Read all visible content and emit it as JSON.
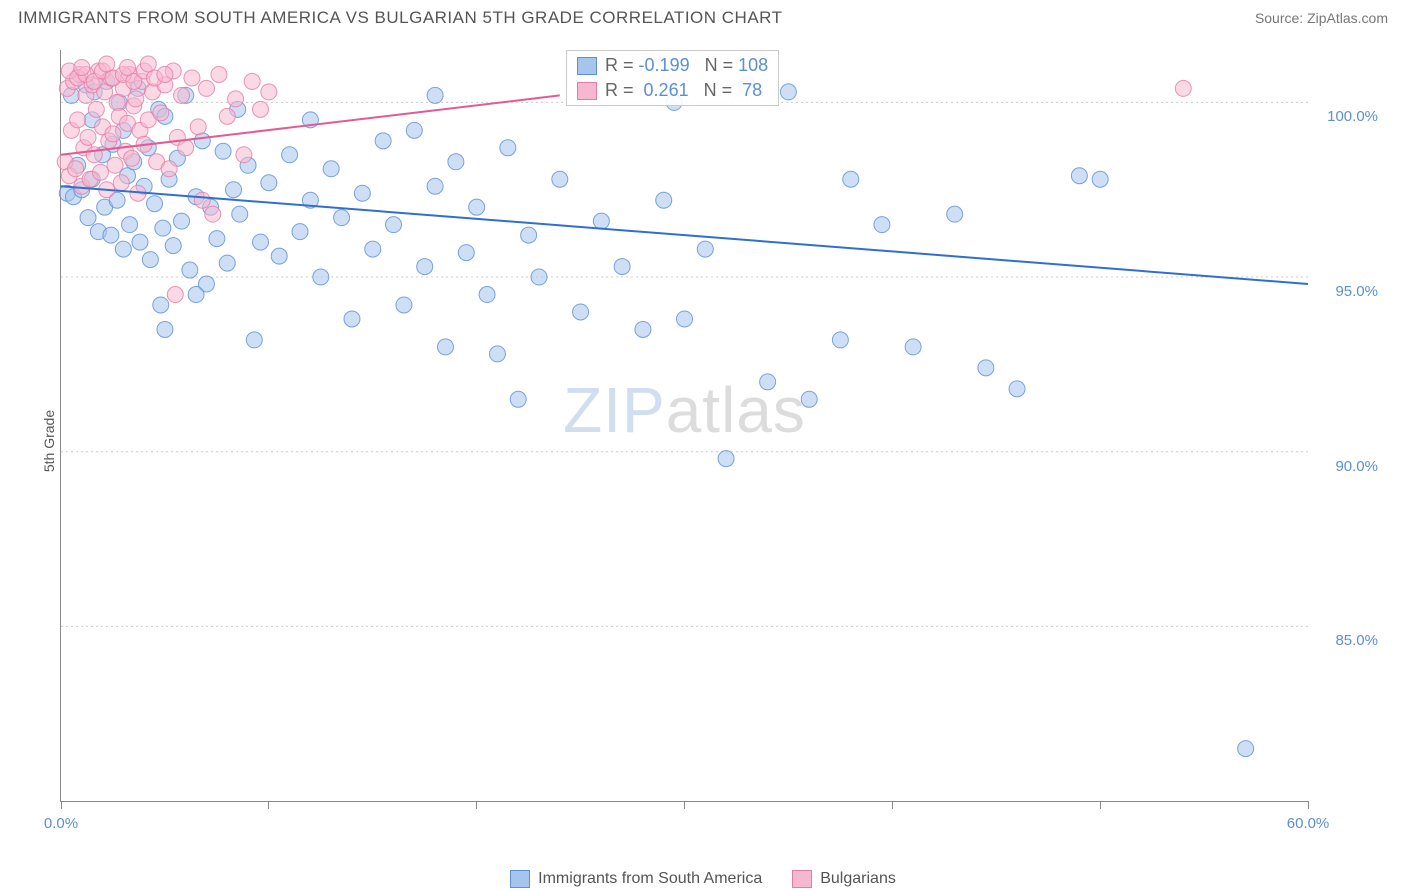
{
  "title": "IMMIGRANTS FROM SOUTH AMERICA VS BULGARIAN 5TH GRADE CORRELATION CHART",
  "source": "Source: ZipAtlas.com",
  "ylabel": "5th Grade",
  "watermark": {
    "part1": "ZIP",
    "part2": "atlas"
  },
  "chart": {
    "type": "scatter",
    "xlim": [
      0,
      60
    ],
    "ylim": [
      80,
      101.5
    ],
    "x_ticks": [
      0,
      10,
      20,
      30,
      40,
      50,
      60
    ],
    "x_tick_labels": {
      "0": "0.0%",
      "60": "60.0%"
    },
    "y_ticks": [
      85,
      90,
      95,
      100
    ],
    "y_tick_labels": {
      "85": "85.0%",
      "90": "90.0%",
      "95": "95.0%",
      "100": "100.0%"
    },
    "y_tick_color": "#5b8fd6",
    "x_tick_color": "#5b8fd6",
    "grid_color": "#cccccc",
    "background_color": "#ffffff",
    "marker_radius": 8,
    "marker_opacity": 0.55,
    "series": [
      {
        "name": "Immigrants from South America",
        "color_fill": "#a6c5ec",
        "color_stroke": "#5b8fd6",
        "r_value": "-0.199",
        "n_value": "108",
        "trend": {
          "x1": 0,
          "y1": 97.6,
          "x2": 60,
          "y2": 94.8,
          "color": "#2e6fd1",
          "width": 2
        },
        "points": [
          [
            0.3,
            97.4
          ],
          [
            0.5,
            100.2
          ],
          [
            0.6,
            97.3
          ],
          [
            0.8,
            98.2
          ],
          [
            1.0,
            97.5
          ],
          [
            1.2,
            100.5
          ],
          [
            1.3,
            96.7
          ],
          [
            1.5,
            97.8
          ],
          [
            1.6,
            100.3
          ],
          [
            1.8,
            96.3
          ],
          [
            2.0,
            98.5
          ],
          [
            2.1,
            97.0
          ],
          [
            2.2,
            100.6
          ],
          [
            2.4,
            96.2
          ],
          [
            2.5,
            98.8
          ],
          [
            2.7,
            97.2
          ],
          [
            2.8,
            100.0
          ],
          [
            3.0,
            95.8
          ],
          [
            3.2,
            97.9
          ],
          [
            3.3,
            96.5
          ],
          [
            3.5,
            98.3
          ],
          [
            3.7,
            100.4
          ],
          [
            3.8,
            96.0
          ],
          [
            4.0,
            97.6
          ],
          [
            4.2,
            98.7
          ],
          [
            4.3,
            95.5
          ],
          [
            4.5,
            97.1
          ],
          [
            4.7,
            99.8
          ],
          [
            4.9,
            96.4
          ],
          [
            5.0,
            93.5
          ],
          [
            5.2,
            97.8
          ],
          [
            5.4,
            95.9
          ],
          [
            5.6,
            98.4
          ],
          [
            5.8,
            96.6
          ],
          [
            6.0,
            100.2
          ],
          [
            6.2,
            95.2
          ],
          [
            6.5,
            97.3
          ],
          [
            6.8,
            98.9
          ],
          [
            7.0,
            94.8
          ],
          [
            7.2,
            97.0
          ],
          [
            7.5,
            96.1
          ],
          [
            7.8,
            98.6
          ],
          [
            8.0,
            95.4
          ],
          [
            8.3,
            97.5
          ],
          [
            8.6,
            96.8
          ],
          [
            9.0,
            98.2
          ],
          [
            9.3,
            93.2
          ],
          [
            9.6,
            96.0
          ],
          [
            10.0,
            97.7
          ],
          [
            10.5,
            95.6
          ],
          [
            11.0,
            98.5
          ],
          [
            11.5,
            96.3
          ],
          [
            12.0,
            97.2
          ],
          [
            12.5,
            95.0
          ],
          [
            13.0,
            98.1
          ],
          [
            13.5,
            96.7
          ],
          [
            14.0,
            93.8
          ],
          [
            14.5,
            97.4
          ],
          [
            15.0,
            95.8
          ],
          [
            15.5,
            98.9
          ],
          [
            16.0,
            96.5
          ],
          [
            16.5,
            94.2
          ],
          [
            17.0,
            99.2
          ],
          [
            17.5,
            95.3
          ],
          [
            18.0,
            97.6
          ],
          [
            18.5,
            93.0
          ],
          [
            19.0,
            98.3
          ],
          [
            19.5,
            95.7
          ],
          [
            20.0,
            97.0
          ],
          [
            20.5,
            94.5
          ],
          [
            21.0,
            92.8
          ],
          [
            21.5,
            98.7
          ],
          [
            22.0,
            91.5
          ],
          [
            22.5,
            96.2
          ],
          [
            23.0,
            95.0
          ],
          [
            24.0,
            97.8
          ],
          [
            25.0,
            94.0
          ],
          [
            26.0,
            96.6
          ],
          [
            27.0,
            95.3
          ],
          [
            28.0,
            93.5
          ],
          [
            29.0,
            97.2
          ],
          [
            29.5,
            100.0
          ],
          [
            30.0,
            93.8
          ],
          [
            31.0,
            95.8
          ],
          [
            32.0,
            89.8
          ],
          [
            33.0,
            100.5
          ],
          [
            34.0,
            92.0
          ],
          [
            35.0,
            100.3
          ],
          [
            36.0,
            91.5
          ],
          [
            37.5,
            93.2
          ],
          [
            38.0,
            97.8
          ],
          [
            39.5,
            96.5
          ],
          [
            41.0,
            93.0
          ],
          [
            43.0,
            96.8
          ],
          [
            44.5,
            92.4
          ],
          [
            46.0,
            91.8
          ],
          [
            49.0,
            97.9
          ],
          [
            50.0,
            97.8
          ],
          [
            57.0,
            81.5
          ],
          [
            1.5,
            99.5
          ],
          [
            3.0,
            99.2
          ],
          [
            5.0,
            99.6
          ],
          [
            8.5,
            99.8
          ],
          [
            12.0,
            99.5
          ],
          [
            18.0,
            100.2
          ],
          [
            4.8,
            94.2
          ],
          [
            6.5,
            94.5
          ]
        ]
      },
      {
        "name": "Bulgarians",
        "color_fill": "#f5b8ce",
        "color_stroke": "#e97aa5",
        "r_value": "0.261",
        "n_value": "78",
        "trend": {
          "x1": 0,
          "y1": 98.5,
          "x2": 24,
          "y2": 100.2,
          "color": "#e55a94",
          "width": 2
        },
        "points": [
          [
            0.2,
            98.3
          ],
          [
            0.3,
            100.4
          ],
          [
            0.4,
            97.9
          ],
          [
            0.5,
            99.2
          ],
          [
            0.6,
            100.6
          ],
          [
            0.7,
            98.1
          ],
          [
            0.8,
            99.5
          ],
          [
            0.9,
            100.8
          ],
          [
            1.0,
            97.6
          ],
          [
            1.1,
            98.7
          ],
          [
            1.2,
            100.2
          ],
          [
            1.3,
            99.0
          ],
          [
            1.4,
            97.8
          ],
          [
            1.5,
            100.5
          ],
          [
            1.6,
            98.5
          ],
          [
            1.7,
            99.8
          ],
          [
            1.8,
            100.9
          ],
          [
            1.9,
            98.0
          ],
          [
            2.0,
            99.3
          ],
          [
            2.1,
            100.3
          ],
          [
            2.2,
            97.5
          ],
          [
            2.3,
            98.9
          ],
          [
            2.4,
            100.7
          ],
          [
            2.5,
            99.1
          ],
          [
            2.6,
            98.2
          ],
          [
            2.7,
            100.0
          ],
          [
            2.8,
            99.6
          ],
          [
            2.9,
            97.7
          ],
          [
            3.0,
            100.4
          ],
          [
            3.1,
            98.6
          ],
          [
            3.2,
            99.4
          ],
          [
            3.3,
            100.8
          ],
          [
            3.4,
            98.4
          ],
          [
            3.5,
            99.9
          ],
          [
            3.6,
            100.1
          ],
          [
            3.7,
            97.4
          ],
          [
            3.8,
            99.2
          ],
          [
            3.9,
            100.6
          ],
          [
            4.0,
            98.8
          ],
          [
            4.2,
            99.5
          ],
          [
            4.4,
            100.3
          ],
          [
            4.6,
            98.3
          ],
          [
            4.8,
            99.7
          ],
          [
            5.0,
            100.5
          ],
          [
            5.2,
            98.1
          ],
          [
            5.4,
            100.9
          ],
          [
            5.6,
            99.0
          ],
          [
            5.8,
            100.2
          ],
          [
            6.0,
            98.7
          ],
          [
            6.3,
            100.7
          ],
          [
            6.6,
            99.3
          ],
          [
            7.0,
            100.4
          ],
          [
            7.3,
            96.8
          ],
          [
            7.6,
            100.8
          ],
          [
            8.0,
            99.6
          ],
          [
            8.4,
            100.1
          ],
          [
            8.8,
            98.5
          ],
          [
            9.2,
            100.6
          ],
          [
            9.6,
            99.8
          ],
          [
            10.0,
            100.3
          ],
          [
            5.5,
            94.5
          ],
          [
            6.8,
            97.2
          ],
          [
            54.0,
            100.4
          ],
          [
            0.4,
            100.9
          ],
          [
            0.8,
            100.7
          ],
          [
            1.2,
            100.8
          ],
          [
            1.6,
            100.6
          ],
          [
            2.0,
            100.9
          ],
          [
            2.5,
            100.7
          ],
          [
            3.0,
            100.8
          ],
          [
            3.5,
            100.6
          ],
          [
            4.0,
            100.9
          ],
          [
            4.5,
            100.7
          ],
          [
            5.0,
            100.8
          ],
          [
            1.0,
            101.0
          ],
          [
            2.2,
            101.1
          ],
          [
            3.2,
            101.0
          ],
          [
            4.2,
            101.1
          ]
        ]
      }
    ],
    "stats_box": {
      "left_pct": 40.5,
      "top_pct": 0,
      "text_color_label": "#666",
      "text_color_value": "#5b8fd6"
    },
    "legend_items": [
      {
        "label": "Immigrants from South America",
        "fill": "#a6c5ec",
        "stroke": "#5b8fd6"
      },
      {
        "label": "Bulgarians",
        "fill": "#f5b8ce",
        "stroke": "#e97aa5"
      }
    ]
  }
}
